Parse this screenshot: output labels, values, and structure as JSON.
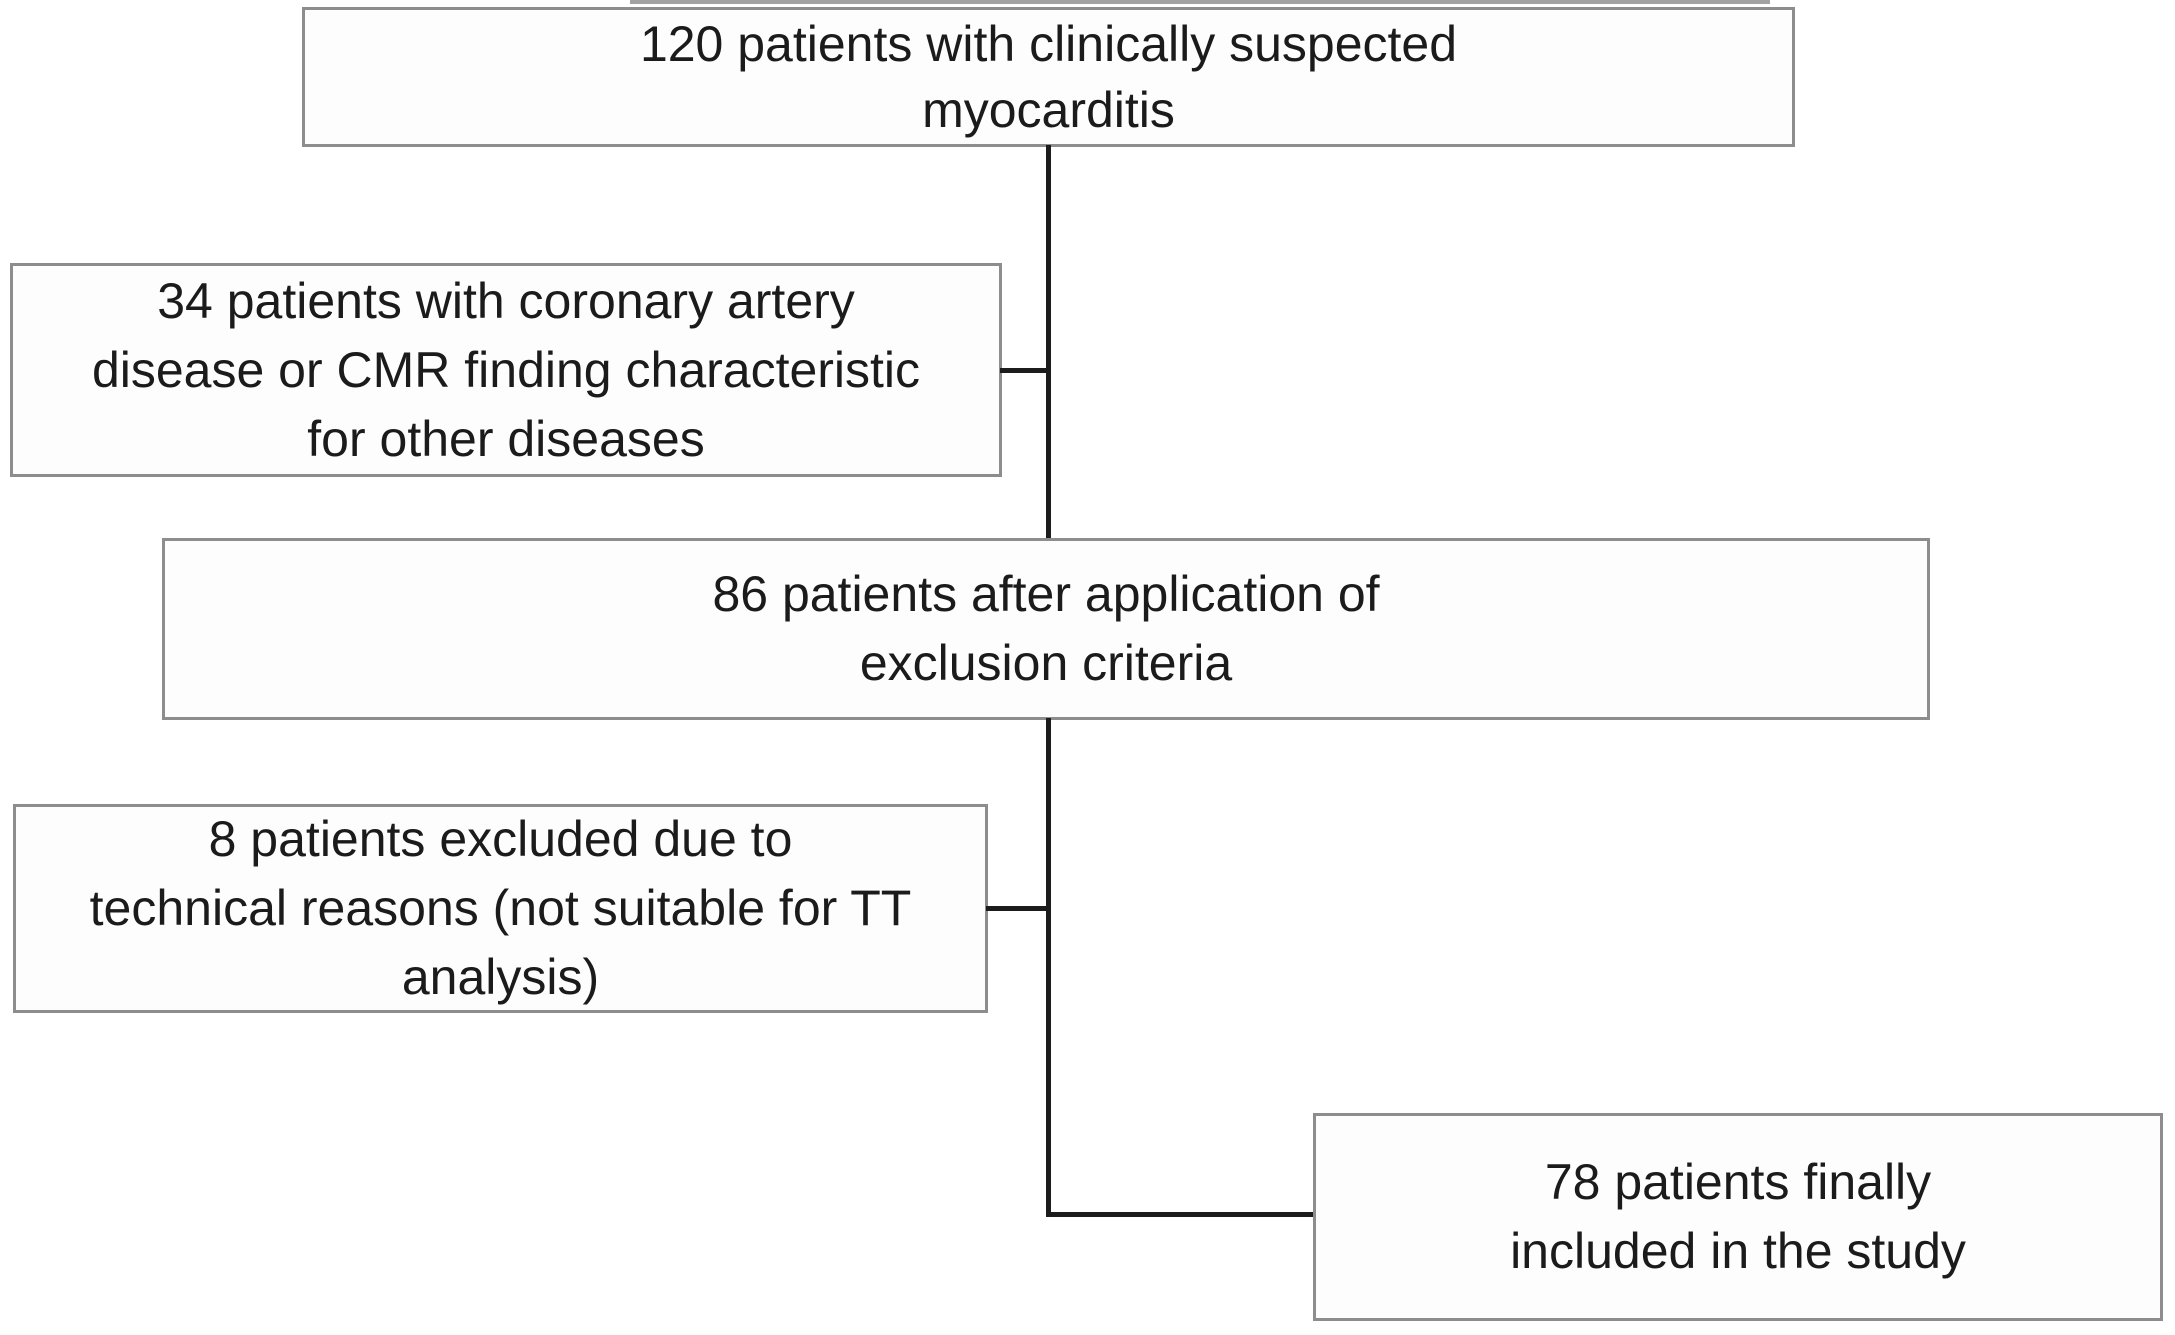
{
  "diagram": {
    "type": "flowchart",
    "subject": "patient inclusion flow",
    "colors": {
      "box_border": "#8d8d8d",
      "connector": "#1c1c1c",
      "text": "#1b1b1b",
      "background": "#ffffff"
    },
    "boxes": [
      {
        "id": "box-120",
        "count": 120,
        "lines": [
          "120 patients with clinically suspected",
          "myocarditis"
        ]
      },
      {
        "id": "box-34",
        "count": 34,
        "lines": [
          "34 patients with coronary artery",
          "disease or CMR finding characteristic",
          "for other diseases"
        ]
      },
      {
        "id": "box-86",
        "count": 86,
        "lines": [
          "86 patients after application of",
          "exclusion criteria"
        ]
      },
      {
        "id": "box-8",
        "count": 8,
        "lines": [
          "8 patients excluded due to",
          "technical reasons (not suitable for TT",
          "analysis)"
        ]
      },
      {
        "id": "box-78",
        "count": 78,
        "lines": [
          "78 patients finally",
          "included in the study"
        ]
      }
    ]
  }
}
